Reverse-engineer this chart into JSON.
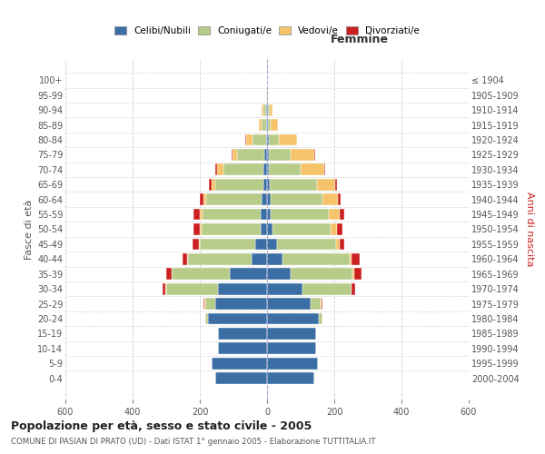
{
  "age_groups": [
    "0-4",
    "5-9",
    "10-14",
    "15-19",
    "20-24",
    "25-29",
    "30-34",
    "35-39",
    "40-44",
    "45-49",
    "50-54",
    "55-59",
    "60-64",
    "65-69",
    "70-74",
    "75-79",
    "80-84",
    "85-89",
    "90-94",
    "95-99",
    "100+"
  ],
  "birth_years": [
    "2000-2004",
    "1995-1999",
    "1990-1994",
    "1985-1989",
    "1980-1984",
    "1975-1979",
    "1970-1974",
    "1965-1969",
    "1960-1964",
    "1955-1959",
    "1950-1954",
    "1945-1949",
    "1940-1944",
    "1935-1939",
    "1930-1934",
    "1925-1929",
    "1920-1924",
    "1915-1919",
    "1910-1914",
    "1905-1909",
    "≤ 1904"
  ],
  "males": {
    "celibi": [
      155,
      165,
      145,
      145,
      175,
      155,
      145,
      110,
      45,
      35,
      20,
      18,
      15,
      10,
      10,
      8,
      4,
      2,
      2,
      0,
      0
    ],
    "coniugati": [
      0,
      0,
      2,
      2,
      10,
      30,
      155,
      175,
      190,
      165,
      175,
      175,
      165,
      145,
      120,
      80,
      38,
      14,
      8,
      2,
      0
    ],
    "vedovi": [
      0,
      0,
      0,
      0,
      0,
      2,
      2,
      0,
      2,
      4,
      5,
      8,
      8,
      10,
      20,
      15,
      20,
      8,
      5,
      2,
      0
    ],
    "divorziati": [
      0,
      0,
      0,
      0,
      0,
      2,
      8,
      15,
      15,
      18,
      18,
      18,
      12,
      8,
      5,
      2,
      2,
      0,
      0,
      0,
      0
    ]
  },
  "females": {
    "nubili": [
      140,
      150,
      145,
      145,
      155,
      130,
      105,
      70,
      45,
      30,
      15,
      10,
      10,
      8,
      5,
      5,
      5,
      2,
      2,
      0,
      0
    ],
    "coniugate": [
      0,
      0,
      2,
      2,
      10,
      30,
      145,
      185,
      200,
      175,
      175,
      175,
      155,
      140,
      95,
      65,
      30,
      10,
      5,
      0,
      0
    ],
    "vedove": [
      0,
      0,
      0,
      0,
      0,
      2,
      2,
      5,
      5,
      10,
      18,
      30,
      45,
      55,
      70,
      70,
      55,
      20,
      8,
      2,
      0
    ],
    "divorziate": [
      0,
      0,
      0,
      0,
      0,
      2,
      10,
      20,
      25,
      15,
      15,
      15,
      8,
      5,
      2,
      2,
      0,
      0,
      0,
      0,
      0
    ]
  },
  "colors": {
    "celibi": "#3a6ea5",
    "coniugati": "#b8cc8a",
    "vedovi": "#f5c46a",
    "divorziati": "#cc2020"
  },
  "title": "Popolazione per età, sesso e stato civile - 2005",
  "subtitle": "COMUNE DI PASIAN DI PRATO (UD) - Dati ISTAT 1° gennaio 2005 - Elaborazione TUTTITALIA.IT",
  "xlabel_right": "Femmine",
  "ylabel_left": "Fasce di età",
  "ylabel_right": "Anni di nascita",
  "xlim": 600,
  "legend_labels": [
    "Celibi/Nubili",
    "Coniugati/e",
    "Vedovi/e",
    "Divorziati/e"
  ],
  "bg_color": "#ffffff",
  "grid_color": "#cccccc"
}
